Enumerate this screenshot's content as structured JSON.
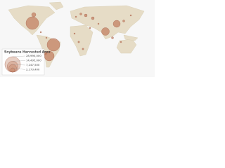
{
  "map": {
    "legend": {
      "title": "Soybeans Harvested Area",
      "values": [
        {
          "value": 28990000,
          "label": "28,990,000"
        },
        {
          "value": 14495000,
          "label": "14,495,000"
        },
        {
          "value": 7247500,
          "label": "7,247,500"
        },
        {
          "value": 2173400,
          "label": "2,173,400"
        }
      ]
    }
  }
}
